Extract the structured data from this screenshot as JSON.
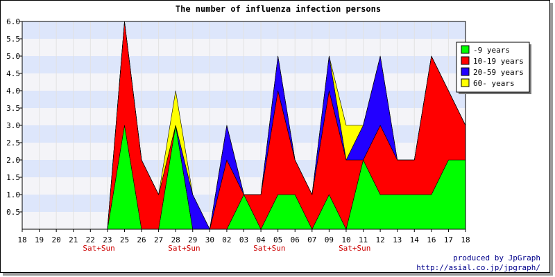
{
  "chart_data": {
    "type": "area",
    "stacked": true,
    "title": "The number of influenza infection persons",
    "xlabel": "",
    "ylabel": "",
    "ylim": [
      0,
      6.0
    ],
    "y_ticks": [
      "0.5",
      "1.0",
      "1.5",
      "2.0",
      "2.5",
      "3.0",
      "3.5",
      "4.0",
      "4.5",
      "5.0",
      "5.5",
      "6.0"
    ],
    "categories": [
      "18",
      "19",
      "20",
      "21",
      "22",
      "23",
      "25",
      "26",
      "27",
      "28",
      "29",
      "30",
      "02",
      "03",
      "04",
      "05",
      "06",
      "07",
      "09",
      "10",
      "11",
      "12",
      "13",
      "14",
      "16",
      "17",
      "18"
    ],
    "annotations": [
      {
        "index": 4,
        "text": "Sat+Sun"
      },
      {
        "index": 9,
        "text": "Sat+Sun"
      },
      {
        "index": 14,
        "text": "Sat+Sun"
      },
      {
        "index": 19,
        "text": "Sat+Sun"
      }
    ],
    "grid": true,
    "legend_position": "top-right",
    "series": [
      {
        "name": "-9 years",
        "color": "#00ff00",
        "values": [
          0,
          0,
          0,
          0,
          0,
          0,
          3,
          0,
          0,
          3,
          0,
          0,
          0,
          1,
          0,
          1,
          1,
          0,
          1,
          0,
          2,
          1,
          1,
          1,
          1,
          2,
          2
        ]
      },
      {
        "name": "10-19 years",
        "color": "#ff0000",
        "values": [
          0,
          0,
          0,
          0,
          0,
          0,
          3,
          2,
          1,
          0,
          0,
          0,
          2,
          0,
          1,
          3,
          1,
          1,
          3,
          2,
          0,
          2,
          1,
          1,
          4,
          2,
          1
        ]
      },
      {
        "name": "20-59 years",
        "color": "#2200ff",
        "values": [
          0,
          0,
          0,
          0,
          0,
          0,
          0,
          0,
          0,
          0,
          1,
          0,
          1,
          0,
          0,
          1,
          0,
          0,
          1,
          0,
          1,
          2,
          0,
          0,
          0,
          0,
          0
        ]
      },
      {
        "name": "60- years",
        "color": "#ffff00",
        "values": [
          0,
          0,
          0,
          0,
          0,
          0,
          0,
          0,
          0,
          1,
          0,
          0,
          0,
          0,
          0,
          0,
          0,
          0,
          0,
          1,
          0,
          0,
          0,
          0,
          0,
          0,
          0
        ]
      }
    ]
  },
  "credits": {
    "line1": "produced by JpGraph",
    "line2": "http://asial.co.jp/jpgraph/"
  }
}
